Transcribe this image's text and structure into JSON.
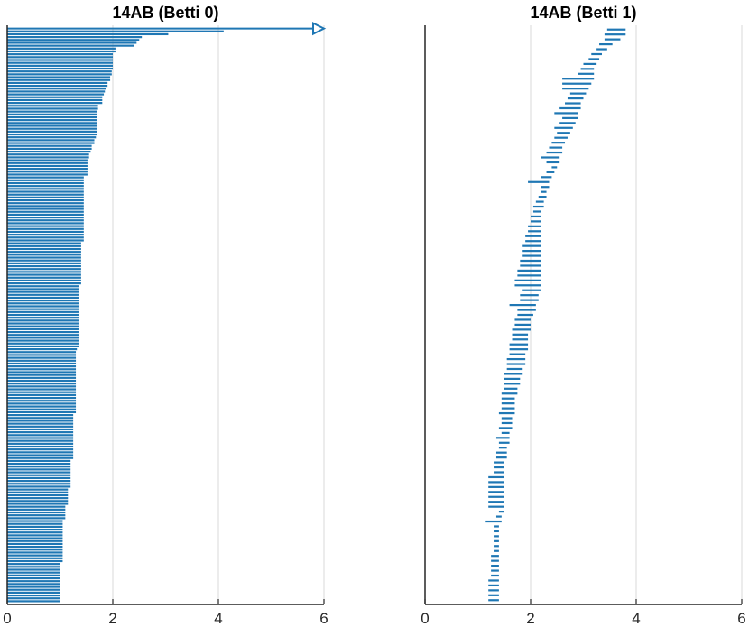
{
  "figure": {
    "bar_color": "#1f77b4",
    "grid_color": "#d9d9d9"
  },
  "chart_data": [
    {
      "type": "bar",
      "orientation": "horizontal",
      "subtype": "persistence-barcode",
      "title": "14AB (Betti 0)",
      "xlim": [
        0,
        6
      ],
      "xticks": [
        "0",
        "2",
        "4",
        "6"
      ],
      "grid": "x",
      "infinite_bar": {
        "start": 0,
        "arrow_to": 6
      },
      "bars": [
        [
          0,
          4.1
        ],
        [
          0,
          3.05
        ],
        [
          0,
          2.55
        ],
        [
          0,
          2.5
        ],
        [
          0,
          2.45
        ],
        [
          0,
          2.4
        ],
        [
          0,
          2.05
        ],
        [
          0,
          2.05
        ],
        [
          0,
          2.0
        ],
        [
          0,
          2.0
        ],
        [
          0,
          2.0
        ],
        [
          0,
          2.0
        ],
        [
          0,
          2.0
        ],
        [
          0,
          2.0
        ],
        [
          0,
          1.98
        ],
        [
          0,
          1.98
        ],
        [
          0,
          1.95
        ],
        [
          0,
          1.95
        ],
        [
          0,
          1.9
        ],
        [
          0,
          1.9
        ],
        [
          0,
          1.88
        ],
        [
          0,
          1.85
        ],
        [
          0,
          1.83
        ],
        [
          0,
          1.8
        ],
        [
          0,
          1.8
        ],
        [
          0,
          1.8
        ],
        [
          0,
          1.72
        ],
        [
          0,
          1.72
        ],
        [
          0,
          1.7
        ],
        [
          0,
          1.7
        ],
        [
          0,
          1.7
        ],
        [
          0,
          1.7
        ],
        [
          0,
          1.7
        ],
        [
          0,
          1.7
        ],
        [
          0,
          1.7
        ],
        [
          0,
          1.7
        ],
        [
          0,
          1.7
        ],
        [
          0,
          1.68
        ],
        [
          0,
          1.65
        ],
        [
          0,
          1.65
        ],
        [
          0,
          1.6
        ],
        [
          0,
          1.6
        ],
        [
          0,
          1.58
        ],
        [
          0,
          1.55
        ],
        [
          0,
          1.55
        ],
        [
          0,
          1.52
        ],
        [
          0,
          1.52
        ],
        [
          0,
          1.52
        ],
        [
          0,
          1.52
        ],
        [
          0,
          1.52
        ],
        [
          0,
          1.52
        ],
        [
          0,
          1.45
        ],
        [
          0,
          1.45
        ],
        [
          0,
          1.45
        ],
        [
          0,
          1.45
        ],
        [
          0,
          1.45
        ],
        [
          0,
          1.45
        ],
        [
          0,
          1.45
        ],
        [
          0,
          1.45
        ],
        [
          0,
          1.45
        ],
        [
          0,
          1.45
        ],
        [
          0,
          1.45
        ],
        [
          0,
          1.45
        ],
        [
          0,
          1.45
        ],
        [
          0,
          1.45
        ],
        [
          0,
          1.45
        ],
        [
          0,
          1.45
        ],
        [
          0,
          1.45
        ],
        [
          0,
          1.45
        ],
        [
          0,
          1.45
        ],
        [
          0,
          1.45
        ],
        [
          0,
          1.45
        ],
        [
          0,
          1.45
        ],
        [
          0,
          1.45
        ],
        [
          0,
          1.4
        ],
        [
          0,
          1.4
        ],
        [
          0,
          1.4
        ],
        [
          0,
          1.4
        ],
        [
          0,
          1.4
        ],
        [
          0,
          1.4
        ],
        [
          0,
          1.4
        ],
        [
          0,
          1.4
        ],
        [
          0,
          1.4
        ],
        [
          0,
          1.4
        ],
        [
          0,
          1.4
        ],
        [
          0,
          1.4
        ],
        [
          0,
          1.4
        ],
        [
          0,
          1.4
        ],
        [
          0,
          1.4
        ],
        [
          0,
          1.35
        ],
        [
          0,
          1.35
        ],
        [
          0,
          1.35
        ],
        [
          0,
          1.35
        ],
        [
          0,
          1.35
        ],
        [
          0,
          1.35
        ],
        [
          0,
          1.35
        ],
        [
          0,
          1.35
        ],
        [
          0,
          1.35
        ],
        [
          0,
          1.35
        ],
        [
          0,
          1.35
        ],
        [
          0,
          1.35
        ],
        [
          0,
          1.35
        ],
        [
          0,
          1.35
        ],
        [
          0,
          1.35
        ],
        [
          0,
          1.35
        ],
        [
          0,
          1.35
        ],
        [
          0,
          1.35
        ],
        [
          0,
          1.35
        ],
        [
          0,
          1.35
        ],
        [
          0,
          1.35
        ],
        [
          0,
          1.35
        ],
        [
          0,
          1.32
        ],
        [
          0,
          1.3
        ],
        [
          0,
          1.3
        ],
        [
          0,
          1.3
        ],
        [
          0,
          1.3
        ],
        [
          0,
          1.3
        ],
        [
          0,
          1.3
        ],
        [
          0,
          1.3
        ],
        [
          0,
          1.3
        ],
        [
          0,
          1.3
        ],
        [
          0,
          1.3
        ],
        [
          0,
          1.3
        ],
        [
          0,
          1.3
        ],
        [
          0,
          1.3
        ],
        [
          0,
          1.3
        ],
        [
          0,
          1.3
        ],
        [
          0,
          1.3
        ],
        [
          0,
          1.3
        ],
        [
          0,
          1.3
        ],
        [
          0,
          1.3
        ],
        [
          0,
          1.3
        ],
        [
          0,
          1.3
        ],
        [
          0,
          1.3
        ],
        [
          0,
          1.25
        ],
        [
          0,
          1.25
        ],
        [
          0,
          1.25
        ],
        [
          0,
          1.25
        ],
        [
          0,
          1.25
        ],
        [
          0,
          1.25
        ],
        [
          0,
          1.25
        ],
        [
          0,
          1.25
        ],
        [
          0,
          1.25
        ],
        [
          0,
          1.25
        ],
        [
          0,
          1.25
        ],
        [
          0,
          1.25
        ],
        [
          0,
          1.25
        ],
        [
          0,
          1.25
        ],
        [
          0,
          1.25
        ],
        [
          0,
          1.25
        ],
        [
          0,
          1.2
        ],
        [
          0,
          1.2
        ],
        [
          0,
          1.2
        ],
        [
          0,
          1.2
        ],
        [
          0,
          1.2
        ],
        [
          0,
          1.2
        ],
        [
          0,
          1.2
        ],
        [
          0,
          1.2
        ],
        [
          0,
          1.2
        ],
        [
          0,
          1.2
        ],
        [
          0,
          1.15
        ],
        [
          0,
          1.15
        ],
        [
          0,
          1.15
        ],
        [
          0,
          1.15
        ],
        [
          0,
          1.15
        ],
        [
          0,
          1.15
        ],
        [
          0,
          1.1
        ],
        [
          0,
          1.1
        ],
        [
          0,
          1.1
        ],
        [
          0,
          1.1
        ],
        [
          0,
          1.1
        ],
        [
          0,
          1.05
        ],
        [
          0,
          1.05
        ],
        [
          0,
          1.05
        ],
        [
          0,
          1.05
        ],
        [
          0,
          1.05
        ],
        [
          0,
          1.05
        ],
        [
          0,
          1.05
        ],
        [
          0,
          1.05
        ],
        [
          0,
          1.05
        ],
        [
          0,
          1.05
        ],
        [
          0,
          1.05
        ],
        [
          0,
          1.05
        ],
        [
          0,
          1.05
        ],
        [
          0,
          1.05
        ],
        [
          0,
          1.05
        ],
        [
          0,
          1.0
        ],
        [
          0,
          1.0
        ],
        [
          0,
          1.0
        ],
        [
          0,
          1.0
        ],
        [
          0,
          1.0
        ],
        [
          0,
          1.0
        ],
        [
          0,
          1.0
        ],
        [
          0,
          1.0
        ],
        [
          0,
          1.0
        ],
        [
          0,
          1.0
        ],
        [
          0,
          1.0
        ],
        [
          0,
          1.0
        ],
        [
          0,
          1.0
        ],
        [
          0,
          1.0
        ]
      ]
    },
    {
      "type": "bar",
      "orientation": "horizontal",
      "subtype": "persistence-barcode",
      "title": "14AB (Betti 1)",
      "xlim": [
        0,
        6
      ],
      "xticks": [
        "0",
        "2",
        "4",
        "6"
      ],
      "grid": "x",
      "bars": [
        [
          3.45,
          3.8
        ],
        [
          3.4,
          3.8
        ],
        [
          3.4,
          3.7
        ],
        [
          3.3,
          3.55
        ],
        [
          3.25,
          3.45
        ],
        [
          3.15,
          3.35
        ],
        [
          3.1,
          3.3
        ],
        [
          3.0,
          3.25
        ],
        [
          2.95,
          3.2
        ],
        [
          2.9,
          3.2
        ],
        [
          2.6,
          3.2
        ],
        [
          2.6,
          3.15
        ],
        [
          2.6,
          3.1
        ],
        [
          2.75,
          3.05
        ],
        [
          2.7,
          3.0
        ],
        [
          2.65,
          2.95
        ],
        [
          2.55,
          2.95
        ],
        [
          2.45,
          2.9
        ],
        [
          2.6,
          2.9
        ],
        [
          2.55,
          2.85
        ],
        [
          2.45,
          2.8
        ],
        [
          2.5,
          2.75
        ],
        [
          2.45,
          2.7
        ],
        [
          2.4,
          2.65
        ],
        [
          2.35,
          2.6
        ],
        [
          2.3,
          2.6
        ],
        [
          2.2,
          2.55
        ],
        [
          2.3,
          2.55
        ],
        [
          2.4,
          2.5
        ],
        [
          2.3,
          2.45
        ],
        [
          2.2,
          2.4
        ],
        [
          1.95,
          2.35
        ],
        [
          2.2,
          2.35
        ],
        [
          2.2,
          2.3
        ],
        [
          2.15,
          2.3
        ],
        [
          2.1,
          2.25
        ],
        [
          2.05,
          2.25
        ],
        [
          2.05,
          2.2
        ],
        [
          2.0,
          2.2
        ],
        [
          2.0,
          2.2
        ],
        [
          1.95,
          2.2
        ],
        [
          1.95,
          2.2
        ],
        [
          1.9,
          2.2
        ],
        [
          1.9,
          2.2
        ],
        [
          1.85,
          2.2
        ],
        [
          1.85,
          2.2
        ],
        [
          1.85,
          2.2
        ],
        [
          1.8,
          2.2
        ],
        [
          1.8,
          2.2
        ],
        [
          1.75,
          2.2
        ],
        [
          1.75,
          2.2
        ],
        [
          1.7,
          2.2
        ],
        [
          1.7,
          2.2
        ],
        [
          1.85,
          2.2
        ],
        [
          1.8,
          2.15
        ],
        [
          1.8,
          2.15
        ],
        [
          1.6,
          2.1
        ],
        [
          1.75,
          2.1
        ],
        [
          1.75,
          2.05
        ],
        [
          1.7,
          2.0
        ],
        [
          1.7,
          2.0
        ],
        [
          1.65,
          2.0
        ],
        [
          1.65,
          1.95
        ],
        [
          1.65,
          1.95
        ],
        [
          1.6,
          1.95
        ],
        [
          1.6,
          1.95
        ],
        [
          1.6,
          1.9
        ],
        [
          1.55,
          1.9
        ],
        [
          1.55,
          1.9
        ],
        [
          1.55,
          1.85
        ],
        [
          1.5,
          1.85
        ],
        [
          1.5,
          1.8
        ],
        [
          1.5,
          1.8
        ],
        [
          1.5,
          1.75
        ],
        [
          1.45,
          1.75
        ],
        [
          1.45,
          1.7
        ],
        [
          1.45,
          1.7
        ],
        [
          1.45,
          1.7
        ],
        [
          1.4,
          1.7
        ],
        [
          1.45,
          1.65
        ],
        [
          1.45,
          1.65
        ],
        [
          1.4,
          1.65
        ],
        [
          1.45,
          1.6
        ],
        [
          1.35,
          1.6
        ],
        [
          1.4,
          1.6
        ],
        [
          1.4,
          1.55
        ],
        [
          1.35,
          1.55
        ],
        [
          1.35,
          1.55
        ],
        [
          1.3,
          1.5
        ],
        [
          1.3,
          1.5
        ],
        [
          1.3,
          1.5
        ],
        [
          1.2,
          1.5
        ],
        [
          1.2,
          1.5
        ],
        [
          1.2,
          1.5
        ],
        [
          1.2,
          1.5
        ],
        [
          1.2,
          1.5
        ],
        [
          1.2,
          1.5
        ],
        [
          1.2,
          1.5
        ],
        [
          1.4,
          1.5
        ],
        [
          1.35,
          1.45
        ],
        [
          1.15,
          1.45
        ],
        [
          1.3,
          1.4
        ],
        [
          1.3,
          1.4
        ],
        [
          1.3,
          1.4
        ],
        [
          1.3,
          1.4
        ],
        [
          1.3,
          1.4
        ],
        [
          1.3,
          1.4
        ],
        [
          1.25,
          1.4
        ],
        [
          1.25,
          1.4
        ],
        [
          1.25,
          1.4
        ],
        [
          1.25,
          1.4
        ],
        [
          1.25,
          1.4
        ],
        [
          1.2,
          1.4
        ],
        [
          1.2,
          1.4
        ],
        [
          1.2,
          1.4
        ],
        [
          1.2,
          1.4
        ],
        [
          1.2,
          1.4
        ]
      ]
    }
  ]
}
